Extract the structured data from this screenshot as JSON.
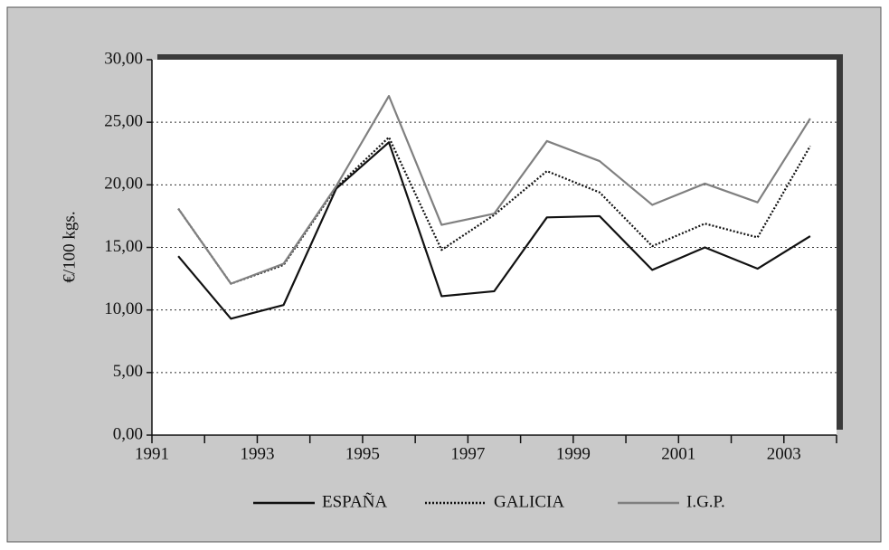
{
  "chart_data": {
    "type": "line",
    "ylabel": "€/100 kgs.",
    "x": [
      1991.5,
      1992.5,
      1993.5,
      1994.5,
      1995.5,
      1996.5,
      1997.5,
      1998.5,
      1999.5,
      2000.5,
      2001.5,
      2002.5,
      2003.5
    ],
    "series": [
      {
        "name": "ESPAÑA",
        "color": "#111111",
        "dash": "solid",
        "values": [
          14.3,
          9.3,
          10.4,
          19.7,
          23.4,
          11.1,
          11.5,
          17.4,
          17.5,
          13.2,
          15.0,
          13.3,
          15.9
        ]
      },
      {
        "name": "GALICIA",
        "color": "#111111",
        "dash": "dotted",
        "values": [
          18.1,
          12.1,
          13.6,
          19.8,
          23.8,
          14.8,
          17.6,
          21.1,
          19.4,
          15.1,
          16.9,
          15.8,
          23.1
        ]
      },
      {
        "name": "I.G.P.",
        "color": "#808080",
        "dash": "solid",
        "values": [
          18.1,
          12.1,
          13.7,
          19.9,
          27.1,
          16.8,
          17.7,
          23.5,
          21.9,
          18.4,
          20.1,
          18.6,
          25.3
        ]
      }
    ],
    "xlim": [
      1991,
      2004
    ],
    "xticks": [
      1991,
      1993,
      1995,
      1997,
      1999,
      2001,
      2003
    ],
    "xminor_ticks": [
      1992,
      1994,
      1996,
      1998,
      2000,
      2002,
      2004
    ],
    "ylim": [
      0,
      30
    ],
    "yticks": [
      {
        "value": 0,
        "label": "0,00"
      },
      {
        "value": 5,
        "label": "5,00"
      },
      {
        "value": 10,
        "label": "10,00"
      },
      {
        "value": 15,
        "label": "15,00"
      },
      {
        "value": 20,
        "label": "20,00"
      },
      {
        "value": 25,
        "label": "25,00"
      },
      {
        "value": 30,
        "label": "30,00"
      }
    ],
    "grid": true,
    "legend": "bottom"
  }
}
